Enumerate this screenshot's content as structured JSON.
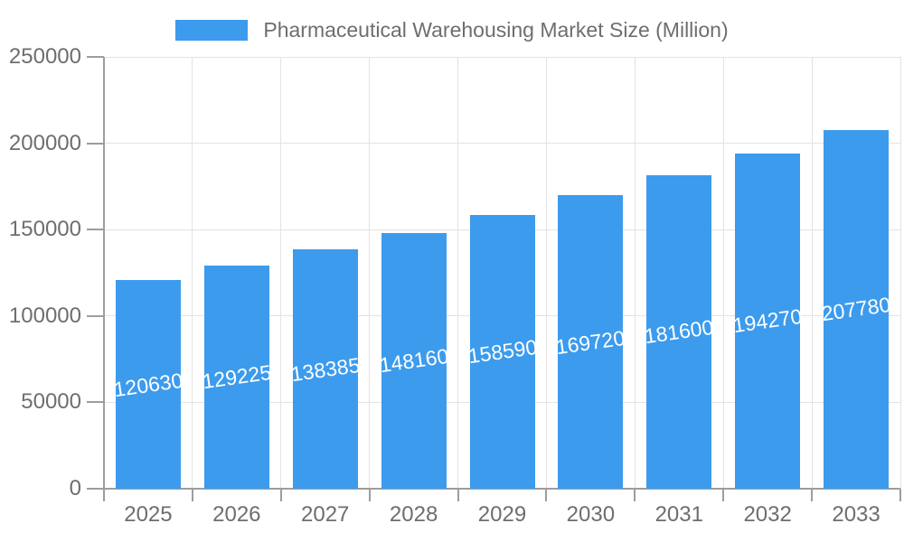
{
  "chart_data": {
    "type": "bar",
    "title": "Pharmaceutical Warehousing Market Size (Million)",
    "categories": [
      "2025",
      "2026",
      "2027",
      "2028",
      "2029",
      "2030",
      "2031",
      "2032",
      "2033"
    ],
    "values": [
      120630,
      129225,
      138385,
      148160,
      158590,
      169720,
      181600,
      194270,
      207780
    ],
    "xlabel": "",
    "ylabel": "",
    "ylim": [
      0,
      250000
    ],
    "yticks": [
      0,
      50000,
      100000,
      150000,
      200000,
      250000
    ],
    "grid": true,
    "legend_position": "top",
    "value_labels_inside_bars": true,
    "value_label_rotation_deg": -8
  },
  "colors": {
    "background": "#ffffff",
    "bar": "#3c9bed",
    "axis_text": "#6e6e6e",
    "grid_line": "#e3e3e3",
    "axis_line": "#9d9d9d",
    "value_label": "#ffffff"
  }
}
